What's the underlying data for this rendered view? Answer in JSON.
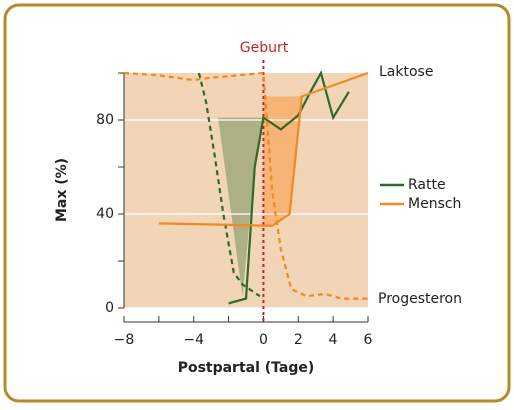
{
  "chart_data": {
    "type": "line",
    "xlabel": "Postpartal (Tage)",
    "ylabel": "Max (%)",
    "annotations": {
      "birth": "Geburt",
      "lactose": "Laktose",
      "progesterone": "Progesteron"
    },
    "xlim": [
      -8,
      6
    ],
    "xticks": [
      {
        "value": -8,
        "label": "−8"
      },
      {
        "value": -4,
        "label": "−4"
      },
      0,
      2,
      4,
      6
    ],
    "xminor": [
      -6,
      -2
    ],
    "ylim": [
      0,
      100
    ],
    "yticks": [
      0,
      40,
      80
    ],
    "yminor": [
      20,
      60,
      100
    ],
    "grid": true,
    "series": [
      {
        "name": "Ratte",
        "color": "#2d6a27",
        "lines": [
          {
            "dashed": false,
            "x": [
              -2,
              -1,
              -0.5,
              0,
              1,
              2,
              2.7,
              3.3,
              4,
              4.9
            ],
            "values": [
              2,
              4,
              60,
              81,
              76,
              82,
              92,
              100,
              81,
              92
            ]
          },
          {
            "dashed": true,
            "x": [
              -3.7,
              -3.3,
              -2.8,
              -2.3,
              -1.7,
              -1.2,
              -0.2
            ],
            "values": [
              100,
              88,
              65,
              40,
              15,
              10,
              5
            ]
          }
        ]
      },
      {
        "name": "Mensch",
        "color": "#f08a1c",
        "lines": [
          {
            "dashed": false,
            "x": [
              -6,
              0.5,
              1.5,
              2.2,
              6
            ],
            "values": [
              36,
              35,
              40,
              90,
              100
            ]
          },
          {
            "dashed": true,
            "x": [
              -8,
              -6,
              -4,
              -3,
              -1.5,
              0,
              0.5,
              1,
              1.6,
              2.5,
              3.5,
              4.5,
              6
            ],
            "values": [
              100,
              99,
              97,
              98,
              99,
              100,
              50,
              25,
              8,
              5,
              6,
              4,
              4
            ]
          }
        ]
      }
    ]
  }
}
